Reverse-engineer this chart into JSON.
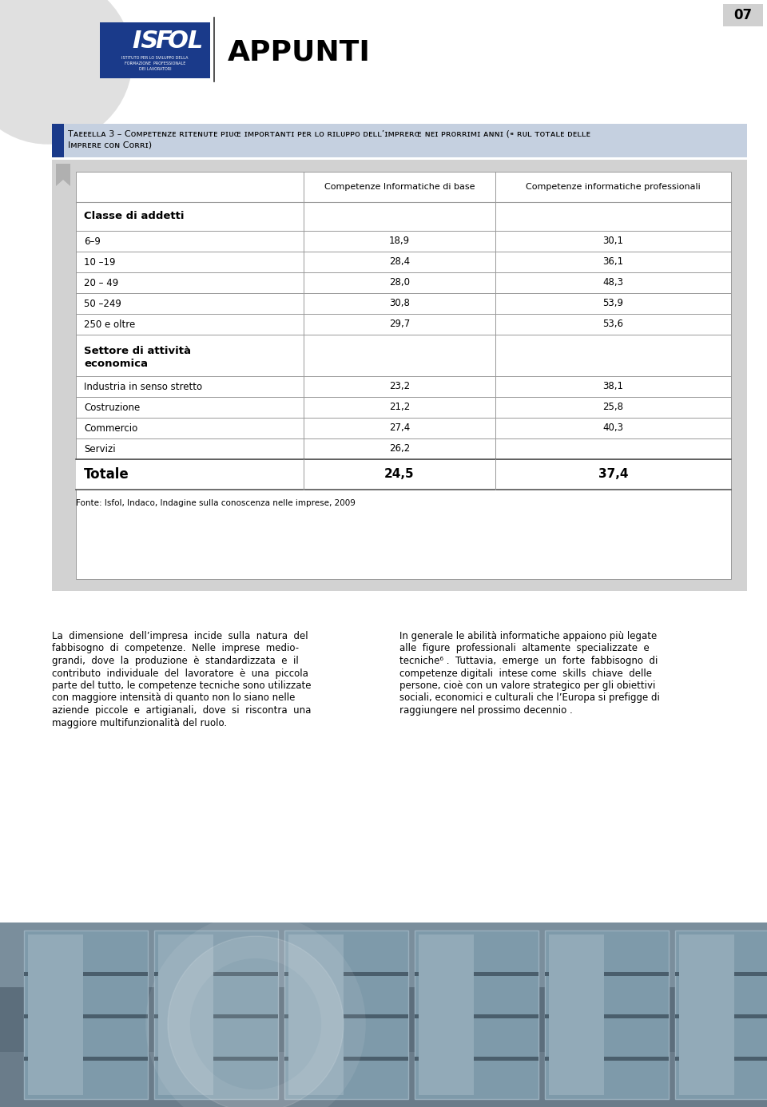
{
  "page_num": "07",
  "appunti_title": "APPUNTI",
  "table_caption_line1": "Tᴀᴇᴇᴇʟʟᴀ 3 – Cᴏᴍᴘᴇᴛᴇɴᴢᴇ ʀɪᴛᴇɴᴜᴛᴇ ᴘɪᴜɶ ɪᴍᴘᴏʀᴛᴀɴᴛɪ ᴘᴇʀ ʟᴏ ʀɪʟᴜᴘᴘᴏ ᴅᴇʟʟ’ɪᴍᴘʀᴇʀɶ ɴᴇɪ ᴘʀᴏʀʀɪᴍɪ ᴀɴɴɪ (⁌ ʀᴜʟ ᴛᴏᴛᴀʟᴇ ᴅᴇʟʟᴇ",
  "table_caption": "Tabella 3 – Competenze ritenute più importanti per lo sviluppo dell’impresa nei prossimi anni (% sul totale delle imprese con corsi)",
  "col_header1": "Competenze Informatiche di base",
  "col_header2": "Competenze informatiche professionali",
  "section1_header": "Classe di addetti",
  "rows_section1": [
    {
      "label": "6–9",
      "val1": "18,9",
      "val2": "30,1"
    },
    {
      "label": "10 –19",
      "val1": "28,4",
      "val2": "36,1"
    },
    {
      "label": "20 – 49",
      "val1": "28,0",
      "val2": "48,3"
    },
    {
      "label": "50 –249",
      "val1": "30,8",
      "val2": "53,9"
    },
    {
      "label": "250 e oltre",
      "val1": "29,7",
      "val2": "53,6"
    }
  ],
  "section2_header_line1": "Settore di attività",
  "section2_header_line2": "economica",
  "rows_section2": [
    {
      "label": "Industria in senso stretto",
      "val1": "23,2",
      "val2": "38,1"
    },
    {
      "label": "Costruzione",
      "val1": "21,2",
      "val2": "25,8"
    },
    {
      "label": "Commercio",
      "val1": "27,4",
      "val2": "40,3"
    },
    {
      "label": "Servizi",
      "val1": "26,2",
      "val2": ""
    }
  ],
  "totale_label": "Totale",
  "totale_val1": "24,5",
  "totale_val2": "37,4",
  "fonte": "Fonte: Isfol, Indaco, Indagine sulla conoscenza nelle imprese, 2009",
  "body_text_left_lines": [
    "La  dimensione  dell’impresa  incide  sulla  natura  del",
    "fabbisogno  di  competenze.  Nelle  imprese  medio-",
    "grandi,  dove  la  produzione  è  standardizzata  e  il",
    "contributo  individuale  del  lavoratore  è  una  piccola",
    "parte del tutto, le competenze tecniche sono utilizzate",
    "con maggiore intensità di quanto non lo siano nelle",
    "aziende  piccole  e  artigianali,  dove  si  riscontra  una",
    "maggiore multifunzionalità del ruolo."
  ],
  "body_text_right_lines": [
    "In generale le abilità informatiche appaiono più legate",
    "alle  figure  professionali  altamente  specializzate  e",
    "tecniche⁶ .  Tuttavia,  emerge  un  forte  fabbisogno  di",
    "competenze digitali  intese come  skills  chiave  delle",
    "persone, cioè con un valore strategico per gli obiettivi",
    "sociali, economici e culturali che l’Europa si prefigge di",
    "raggiungere nel prossimo decennio ."
  ],
  "bg_color": "#ffffff",
  "table_outer_bg": "#d2d2d2",
  "header_blue": "#1a3a8a",
  "caption_bg_color": "#c5d0e0",
  "line_color": "#999999",
  "line_color_dark": "#555555"
}
